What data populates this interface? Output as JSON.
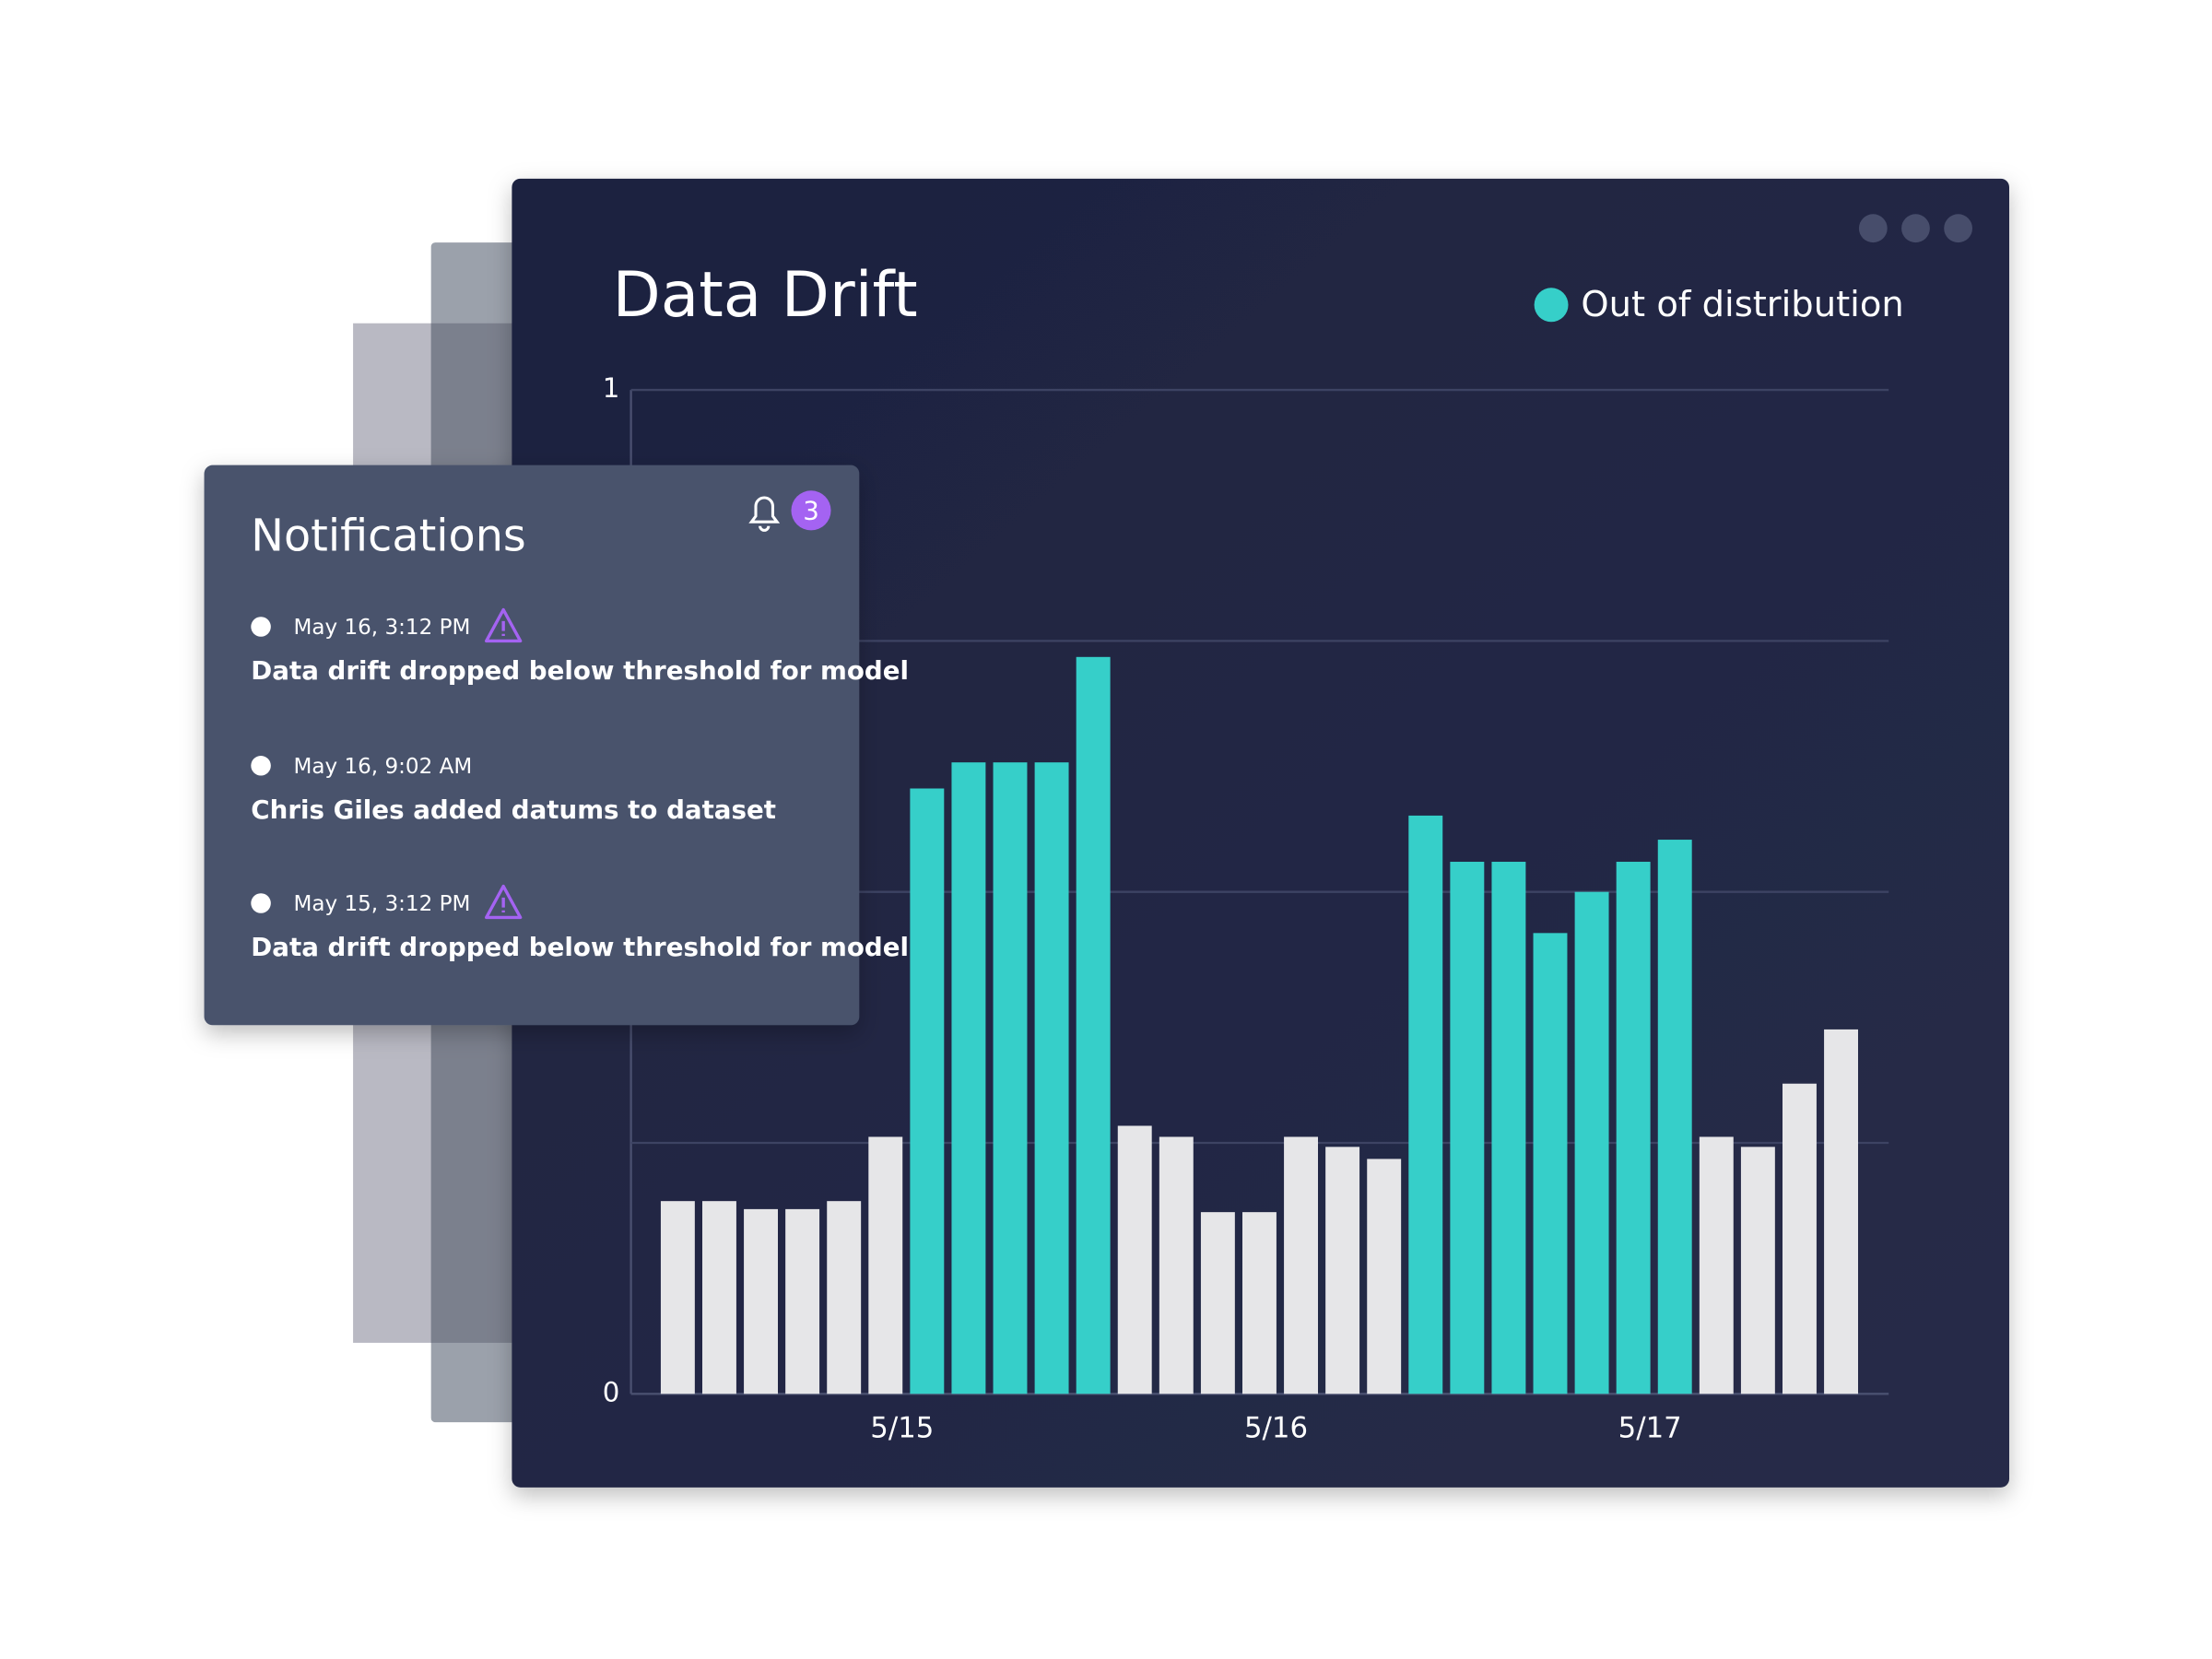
{
  "chart_data": {
    "type": "bar",
    "title": "Data Drift",
    "legend": {
      "label": "Out of distribution",
      "color": "#36cfc9"
    },
    "values": [
      0.192,
      0.192,
      0.184,
      0.184,
      0.192,
      0.256,
      0.603,
      0.629,
      0.629,
      0.629,
      0.734,
      0.267,
      0.256,
      0.181,
      0.181,
      0.256,
      0.246,
      0.234,
      0.576,
      0.53,
      0.53,
      0.459,
      0.5,
      0.53,
      0.552,
      0.256,
      0.246,
      0.309,
      0.363
    ],
    "colors": [
      "#e6e6e8",
      "#e6e6e8",
      "#e6e6e8",
      "#e6e6e8",
      "#e6e6e8",
      "#e6e6e8",
      "#36cfc9",
      "#36cfc9",
      "#36cfc9",
      "#36cfc9",
      "#36cfc9",
      "#e6e6e8",
      "#e6e6e8",
      "#e6e6e8",
      "#e6e6e8",
      "#e6e6e8",
      "#e6e6e8",
      "#e6e6e8",
      "#36cfc9",
      "#36cfc9",
      "#36cfc9",
      "#36cfc9",
      "#36cfc9",
      "#36cfc9",
      "#36cfc9",
      "#e6e6e8",
      "#e6e6e8",
      "#e6e6e8",
      "#e6e6e8"
    ],
    "ylim": [
      0,
      1
    ],
    "yticks": [
      0,
      1
    ],
    "grid": true,
    "ygrid": [
      0.25,
      0.5,
      0.75,
      1
    ],
    "xticks": [
      {
        "value": 5.4,
        "label": "5/15"
      },
      {
        "value": 14.4,
        "label": "5/16"
      },
      {
        "value": 23.4,
        "label": "5/17"
      }
    ]
  },
  "notifications": {
    "title": "Notifications",
    "count": 3,
    "items": [
      {
        "time": "May 16, 3:12 PM",
        "message": "Data drift dropped below threshold for model",
        "warning": true
      },
      {
        "time": "May 16, 9:02 AM",
        "message": "Chris Giles added datums to dataset",
        "warning": false
      },
      {
        "time": "May 15, 3:12 PM",
        "message": "Data drift dropped below threshold for model",
        "warning": true
      }
    ]
  }
}
